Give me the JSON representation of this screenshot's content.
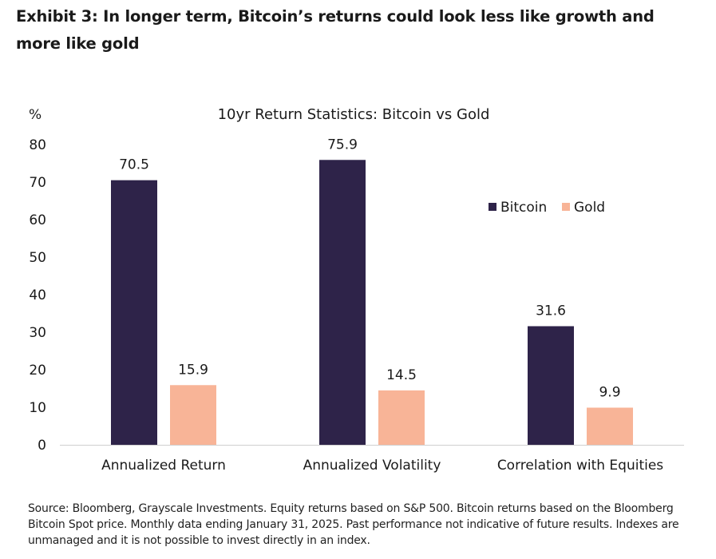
{
  "exhibit_title": "Exhibit 3: In longer term, Bitcoin’s returns could look less like growth and more like gold",
  "source_note": "Source: Bloomberg, Grayscale Investments. Equity returns based on S&P 500. Bitcoin returns based on the Bloomberg Bitcoin Spot price. Monthly data ending January 31, 2025. Past performance not indicative of future results. Indexes are unmanaged and it is not possible to invest directly in an index.",
  "chart_data": {
    "type": "bar",
    "title": "10yr Return Statistics: Bitcoin vs Gold",
    "ylabel": "%",
    "xlabel": "",
    "ylim": [
      0,
      80
    ],
    "yticks": [
      0,
      10,
      20,
      30,
      40,
      50,
      60,
      70,
      80
    ],
    "grid": false,
    "legend": "right",
    "categories": [
      "Annualized Return",
      "Annualized Volatility",
      "Correlation with Equities"
    ],
    "series": [
      {
        "name": "Bitcoin",
        "color": "#2e2349",
        "values": [
          70.5,
          75.9,
          31.6
        ]
      },
      {
        "name": "Gold",
        "color": "#f8b497",
        "values": [
          15.9,
          14.5,
          9.9
        ]
      }
    ],
    "data_labels": true
  }
}
